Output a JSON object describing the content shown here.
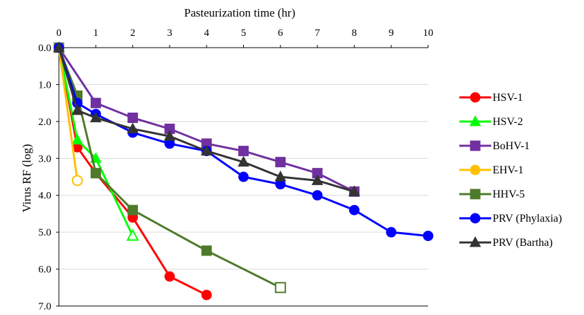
{
  "chart_data": {
    "type": "line",
    "xlabel": "Pasteurization time (hr)",
    "ylabel": "Virus RF (log)",
    "xlim": [
      0,
      10
    ],
    "ylim": [
      0,
      7
    ],
    "y_inverted": true,
    "x_axis_position": "top",
    "x_ticks": [
      "0",
      "1",
      "2",
      "3",
      "4",
      "5",
      "6",
      "7",
      "8",
      "9",
      "10"
    ],
    "y_ticks": [
      "0.0",
      "1.0",
      "2.0",
      "3.0",
      "4.0",
      "5.0",
      "6.0",
      "7.0"
    ],
    "grid": "horizontal",
    "legend_position": "right",
    "series": [
      {
        "name": "HSV-1",
        "color": "#ff0000",
        "marker": "circle",
        "x": [
          0,
          0.5,
          1,
          2,
          3,
          4
        ],
        "y": [
          0,
          2.7,
          3.4,
          4.6,
          6.2,
          6.7
        ],
        "open_last": false
      },
      {
        "name": "HSV-2",
        "color": "#00ff00",
        "marker": "triangle",
        "x": [
          0,
          0.5,
          1,
          2
        ],
        "y": [
          0,
          2.5,
          3.0,
          5.1
        ],
        "open_last": true
      },
      {
        "name": "BoHV-1",
        "color": "#7030a0",
        "marker": "square",
        "x": [
          0,
          1,
          2,
          3,
          4,
          5,
          6,
          7,
          8
        ],
        "y": [
          0,
          1.5,
          1.9,
          2.2,
          2.6,
          2.8,
          3.1,
          3.4,
          3.9
        ],
        "open_last": false
      },
      {
        "name": "EHV-1",
        "color": "#ffc000",
        "marker": "circle",
        "x": [
          0,
          0.5
        ],
        "y": [
          0,
          3.6
        ],
        "open_last": true
      },
      {
        "name": "HHV-5",
        "color": "#4e7a2a",
        "marker": "square",
        "x": [
          0,
          0.5,
          1,
          2,
          4,
          6
        ],
        "y": [
          0,
          1.3,
          3.4,
          4.4,
          5.5,
          6.5
        ],
        "open_last": true
      },
      {
        "name": "PRV (Phylaxia)",
        "color": "#0000ff",
        "marker": "circle",
        "x": [
          0,
          0.5,
          1,
          2,
          3,
          4,
          5,
          6,
          7,
          8,
          9,
          10
        ],
        "y": [
          0,
          1.5,
          1.8,
          2.3,
          2.6,
          2.8,
          3.5,
          3.7,
          4.0,
          4.4,
          5.0,
          5.1
        ],
        "open_last": false
      },
      {
        "name": "PRV (Bartha)",
        "color": "#333333",
        "marker": "triangle",
        "x": [
          0,
          0.5,
          1,
          2,
          3,
          4,
          5,
          6,
          7,
          8
        ],
        "y": [
          0,
          1.7,
          1.9,
          2.2,
          2.4,
          2.8,
          3.1,
          3.5,
          3.6,
          3.9
        ],
        "open_last": false
      }
    ]
  }
}
